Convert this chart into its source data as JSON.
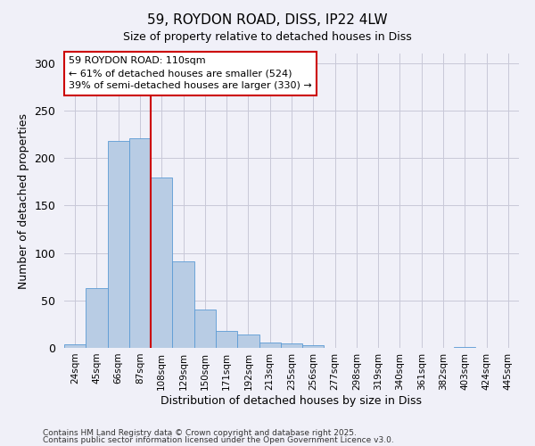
{
  "title1": "59, ROYDON ROAD, DISS, IP22 4LW",
  "title2": "Size of property relative to detached houses in Diss",
  "xlabel": "Distribution of detached houses by size in Diss",
  "ylabel": "Number of detached properties",
  "bin_labels": [
    "24sqm",
    "45sqm",
    "66sqm",
    "87sqm",
    "108sqm",
    "129sqm",
    "150sqm",
    "171sqm",
    "192sqm",
    "213sqm",
    "235sqm",
    "256sqm",
    "277sqm",
    "298sqm",
    "319sqm",
    "340sqm",
    "361sqm",
    "382sqm",
    "403sqm",
    "424sqm",
    "445sqm"
  ],
  "bar_heights": [
    4,
    63,
    218,
    221,
    179,
    91,
    40,
    18,
    14,
    6,
    5,
    3,
    0,
    0,
    0,
    0,
    0,
    0,
    1,
    0,
    0
  ],
  "bar_color": "#b8cce4",
  "bar_edge_color": "#5b9bd5",
  "bar_width": 1.0,
  "vline_bin_index": 4,
  "vline_color": "#cc0000",
  "ylim": [
    0,
    310
  ],
  "yticks": [
    0,
    50,
    100,
    150,
    200,
    250,
    300
  ],
  "annotation_line1": "59 ROYDON ROAD: 110sqm",
  "annotation_line2": "← 61% of detached houses are smaller (524)",
  "annotation_line3": "39% of semi-detached houses are larger (330) →",
  "annotation_box_color": "#cc0000",
  "footer1": "Contains HM Land Registry data © Crown copyright and database right 2025.",
  "footer2": "Contains public sector information licensed under the Open Government Licence v3.0.",
  "bg_color": "#f0f0f8"
}
